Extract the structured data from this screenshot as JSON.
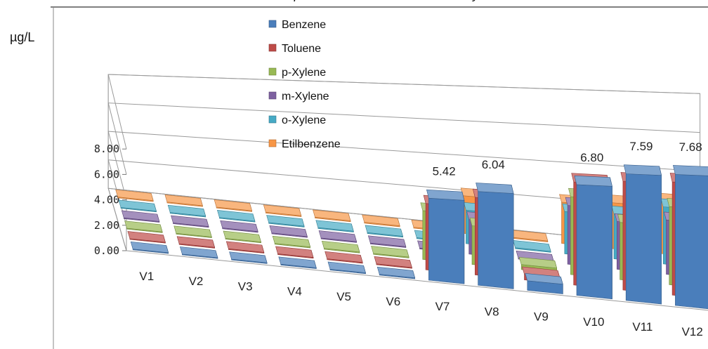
{
  "chart_data": {
    "type": "bar",
    "title": "Chart of Graphic – illustrative Individual Analysis",
    "ylabel": "µg/L",
    "ylim": [
      0,
      8
    ],
    "yticks": [
      "0.00",
      "2.00",
      "4.00",
      "6.00",
      "8.00"
    ],
    "categories": [
      "V1",
      "V2",
      "V3",
      "V4",
      "V5",
      "V6",
      "V7",
      "V8",
      "V9",
      "V10",
      "V11",
      "V12"
    ],
    "series": [
      {
        "name": "Benzene",
        "color": "#4a7ebb",
        "values": [
          0,
          0,
          0,
          0,
          0,
          0,
          5.42,
          6.04,
          0.6,
          6.8,
          7.59,
          7.68
        ]
      },
      {
        "name": "Toluene",
        "color": "#be4b48",
        "values": [
          0,
          0,
          0,
          0,
          0,
          0,
          4.3,
          4.9,
          0.35,
          6.2,
          6.4,
          6.5
        ]
      },
      {
        "name": "p-Xylene",
        "color": "#98b954",
        "values": [
          0,
          0,
          0,
          0,
          0,
          0,
          3.1,
          2.4,
          0.3,
          4.6,
          3.3,
          4.4
        ]
      },
      {
        "name": "m-Xylene",
        "color": "#7d60a0",
        "values": [
          0,
          0,
          0,
          0,
          0,
          0,
          0,
          2.1,
          0,
          3.4,
          2.7,
          3.0
        ]
      },
      {
        "name": "o-Xylene",
        "color": "#46aac5",
        "values": [
          0,
          0,
          0,
          0,
          0,
          0,
          0,
          2.0,
          0,
          2.4,
          2.5,
          3.1
        ]
      },
      {
        "name": "Etilbenzene",
        "color": "#f79646",
        "values": [
          0,
          0,
          0,
          0,
          0,
          0,
          0,
          2.2,
          0,
          2.3,
          2.5,
          2.8
        ]
      }
    ],
    "data_labels": {
      "series": "Benzene",
      "labels": [
        "",
        "",
        "",
        "",
        "",
        "",
        "5.42",
        "6.04",
        "",
        "6.80",
        "7.59",
        "7.68"
      ]
    },
    "legend_position": "top-center",
    "grid": true
  }
}
